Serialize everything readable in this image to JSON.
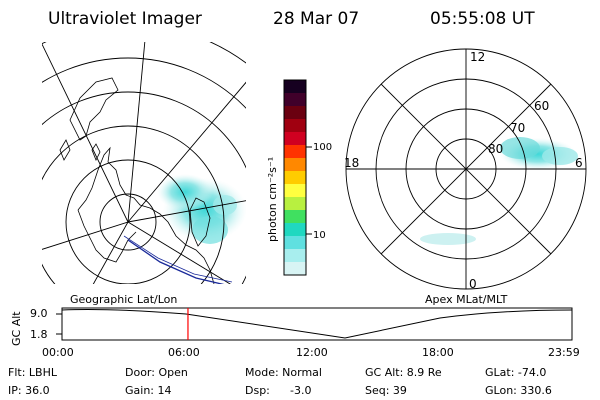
{
  "header": {
    "title": "Ultraviolet Imager",
    "date": "28 Mar 07",
    "time": "05:55:08 UT"
  },
  "colorbar": {
    "unit_label": "photon cm⁻²s⁻¹",
    "ticks": [
      "100",
      "10"
    ],
    "colors": [
      "#160020",
      "#40002a",
      "#6a0010",
      "#a00010",
      "#d00020",
      "#ff3300",
      "#ff8800",
      "#ffcc00",
      "#ffff40",
      "#b8f040",
      "#40e060",
      "#20d8c0",
      "#60e0e0",
      "#a8eeee",
      "#d8f4f4"
    ]
  },
  "polar_plot": {
    "mlt_labels": [
      "12",
      "6",
      "0",
      "18"
    ],
    "lat_labels": [
      "60",
      "70",
      "80"
    ]
  },
  "timeline": {
    "left_title": "Geographic Lat/Lon",
    "right_title": "Apex MLat/MLT",
    "axis_label": "GC Alt",
    "y_ticks": [
      "9.0",
      "1.8"
    ],
    "x_ticks": [
      "00:00",
      "06:00",
      "12:00",
      "18:00",
      "23:59"
    ],
    "current_time_fraction": 0.247
  },
  "info": {
    "flt": "Flt: LBHL",
    "ip": "IP: 36.0",
    "door": "Door: Open",
    "gain": "Gain: 14",
    "mode": "Mode: Normal",
    "dsp": "Dsp:",
    "dsp_value": "-3.0",
    "gc_alt": "GC Alt: 8.9 Re",
    "seq": "Seq: 39",
    "glat": "GLat: -74.0",
    "glon": "GLon: 330.6"
  }
}
